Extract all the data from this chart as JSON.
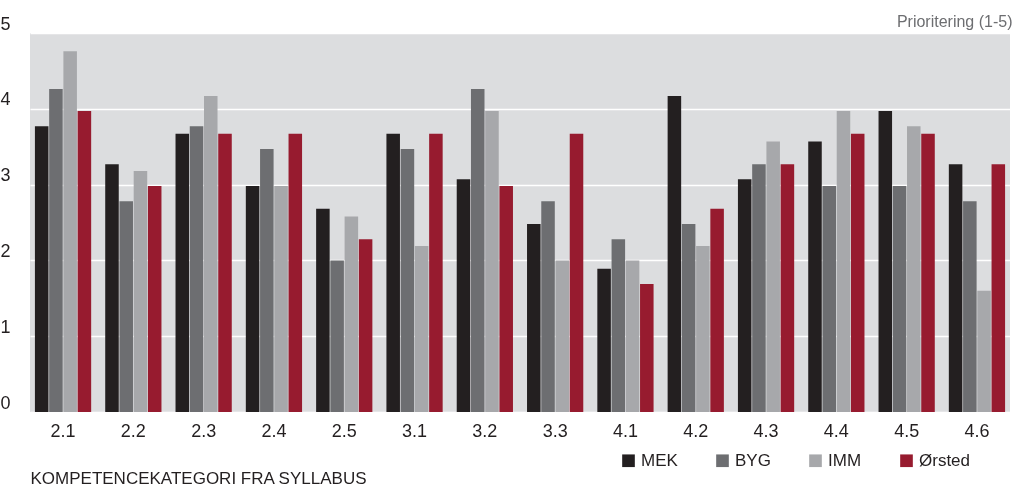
{
  "chart_data": {
    "type": "bar",
    "categories": [
      "2.1",
      "2.2",
      "2.3",
      "2.4",
      "2.5",
      "3.1",
      "3.2",
      "3.3",
      "4.1",
      "4.2",
      "4.3",
      "4.4",
      "4.5",
      "4.6"
    ],
    "series": [
      {
        "name": "MEK",
        "color": "#231f20",
        "values": [
          3.77,
          3.27,
          3.67,
          2.98,
          2.68,
          3.67,
          3.07,
          2.48,
          1.89,
          4.17,
          3.07,
          3.57,
          3.97,
          3.27
        ]
      },
      {
        "name": "BYG",
        "color": "#6d6e71",
        "values": [
          4.26,
          2.78,
          3.77,
          3.47,
          2.0,
          3.47,
          4.26,
          2.78,
          2.28,
          2.48,
          3.27,
          2.98,
          2.98,
          2.78
        ]
      },
      {
        "name": "IMM",
        "color": "#a7a8ab",
        "values": [
          4.76,
          3.18,
          4.17,
          2.98,
          2.58,
          2.19,
          3.97,
          2.0,
          2.0,
          2.19,
          3.57,
          3.97,
          3.77,
          1.6
        ]
      },
      {
        "name": "Ørsted",
        "color": "#971b2f",
        "values": [
          3.97,
          2.98,
          3.67,
          3.67,
          2.28,
          3.67,
          2.98,
          3.67,
          1.69,
          2.68,
          3.27,
          3.67,
          3.67,
          3.27
        ]
      }
    ],
    "xlabel": "KOMPETENCEKATEGORI FRA SYLLABUS",
    "ylabel": "Prioritering (1-5)",
    "ylim": [
      0,
      5
    ],
    "yticks": [
      0,
      1,
      2,
      3,
      4,
      5
    ],
    "grid": "y",
    "legend": "bottom right"
  }
}
